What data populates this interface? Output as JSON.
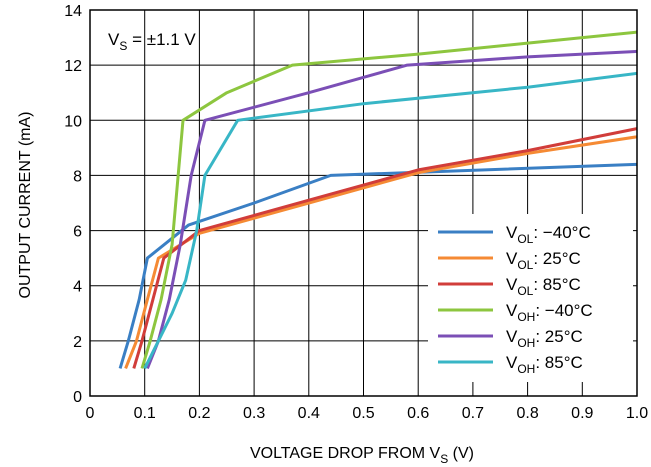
{
  "chart_data": {
    "type": "line",
    "annotation": {
      "main": "V",
      "sub": "S",
      "rest": " = ±1.1 V"
    },
    "xlabel": {
      "main": "VOLTAGE DROP FROM V",
      "sub": "S",
      "rest": " (V)"
    },
    "ylabel": "OUTPUT CURRENT (mA)",
    "xlim": [
      0,
      1.0
    ],
    "ylim": [
      0,
      14
    ],
    "x_ticks": [
      "0",
      "0.1",
      "0.2",
      "0.3",
      "0.4",
      "0.5",
      "0.6",
      "0.7",
      "0.8",
      "0.9",
      "1.0"
    ],
    "x_tick_values": [
      0,
      0.1,
      0.2,
      0.3,
      0.4,
      0.5,
      0.6,
      0.7,
      0.8,
      0.9,
      1.0
    ],
    "y_ticks": [
      "0",
      "2",
      "4",
      "6",
      "8",
      "10",
      "12",
      "14"
    ],
    "y_tick_values": [
      0,
      2,
      4,
      6,
      8,
      10,
      12,
      14
    ],
    "grid": true,
    "legend_position": "bottom-right",
    "series": [
      {
        "name": {
          "main": "V",
          "sub": "OL",
          "rest": ": −40°C"
        },
        "color": "#3a7fc4",
        "x": [
          0.055,
          0.07,
          0.09,
          0.105,
          0.18,
          0.3,
          0.44,
          1.0
        ],
        "y": [
          1,
          2,
          3.5,
          5,
          6.2,
          7,
          8,
          8.4
        ]
      },
      {
        "name": {
          "main": "V",
          "sub": "OL",
          "rest": ": 25°C"
        },
        "color": "#f58a34",
        "x": [
          0.065,
          0.085,
          0.105,
          0.125,
          0.2,
          0.4,
          0.6,
          0.8,
          1.0
        ],
        "y": [
          1,
          2,
          3.5,
          5,
          5.9,
          7,
          8.1,
          8.8,
          9.4
        ]
      },
      {
        "name": {
          "main": "V",
          "sub": "OL",
          "rest": ": 85°C"
        },
        "color": "#d13d3a",
        "x": [
          0.08,
          0.095,
          0.115,
          0.135,
          0.2,
          0.4,
          0.6,
          0.8,
          1.0
        ],
        "y": [
          1,
          2,
          3.5,
          5,
          6,
          7.1,
          8.2,
          8.9,
          9.7
        ]
      },
      {
        "name": {
          "main": "V",
          "sub": "OH",
          "rest": ": −40°C"
        },
        "color": "#8dc63f",
        "x": [
          0.095,
          0.11,
          0.13,
          0.15,
          0.17,
          0.25,
          0.37,
          0.6,
          0.8,
          1.0
        ],
        "y": [
          1,
          2,
          3.5,
          5.5,
          10,
          11,
          12,
          12.4,
          12.8,
          13.2
        ]
      },
      {
        "name": {
          "main": "V",
          "sub": "OH",
          "rest": ": 25°C"
        },
        "color": "#7b4fb6",
        "x": [
          0.105,
          0.125,
          0.145,
          0.165,
          0.185,
          0.21,
          0.4,
          0.58,
          0.8,
          1.0
        ],
        "y": [
          1,
          2,
          3.5,
          5.5,
          8,
          10,
          11,
          12,
          12.3,
          12.5
        ]
      },
      {
        "name": {
          "main": "V",
          "sub": "OH",
          "rest": ": 85°C"
        },
        "color": "#38b6c6",
        "x": [
          0.1,
          0.125,
          0.15,
          0.175,
          0.195,
          0.21,
          0.27,
          0.5,
          0.8,
          1.0
        ],
        "y": [
          1,
          2,
          3,
          4.2,
          6,
          8,
          10,
          10.6,
          11.2,
          11.7
        ]
      }
    ]
  }
}
